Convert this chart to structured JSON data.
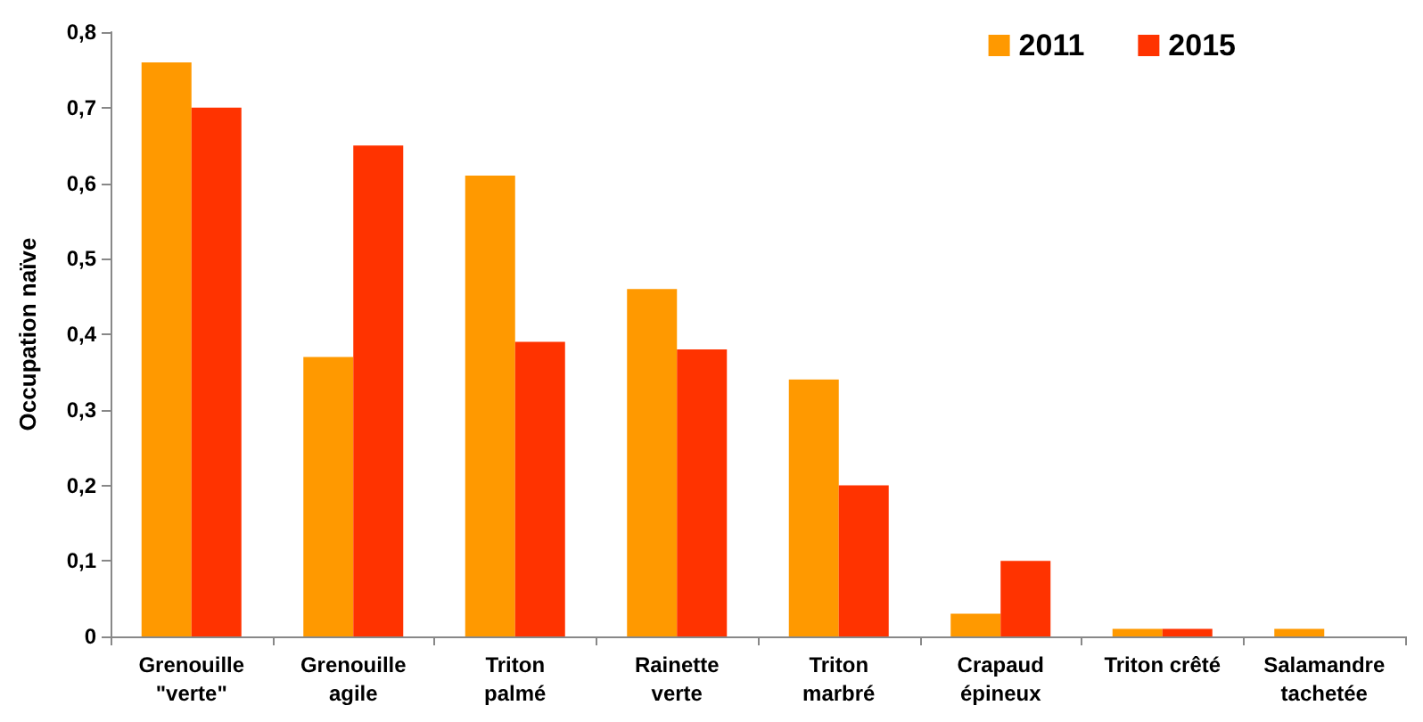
{
  "chart_data": {
    "type": "bar",
    "ylabel": "Occupation naïve",
    "categories": [
      "Grenouille\n\"verte\"",
      "Grenouille\nagile",
      "Triton\npalmé",
      "Rainette\nverte",
      "Triton\nmarbré",
      "Crapaud\népineux",
      "Triton crêté",
      "Salamandre\ntachetée"
    ],
    "series": [
      {
        "name": "2011",
        "color": "#ff9900",
        "values": [
          0.76,
          0.37,
          0.61,
          0.46,
          0.34,
          0.03,
          0.01,
          0.01
        ]
      },
      {
        "name": "2015",
        "color": "#ff3300",
        "values": [
          0.7,
          0.65,
          0.39,
          0.38,
          0.2,
          0.1,
          0.01,
          0
        ]
      }
    ],
    "ylim": [
      0,
      0.8
    ],
    "yticks": [
      {
        "value": 0,
        "label": "0"
      },
      {
        "value": 0.1,
        "label": "0,1"
      },
      {
        "value": 0.2,
        "label": "0,2"
      },
      {
        "value": 0.3,
        "label": "0,3"
      },
      {
        "value": 0.4,
        "label": "0,4"
      },
      {
        "value": 0.5,
        "label": "0,5"
      },
      {
        "value": 0.6,
        "label": "0,6"
      },
      {
        "value": 0.7,
        "label": "0,7"
      },
      {
        "value": 0.8,
        "label": "0,8"
      }
    ],
    "grid": false,
    "legend": "top right"
  }
}
